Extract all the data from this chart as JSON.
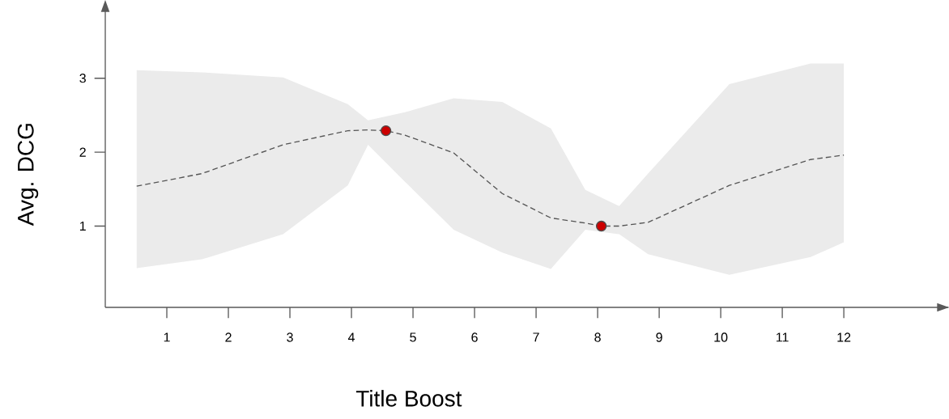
{
  "chart_data": {
    "type": "line",
    "xlabel": "Title Boost",
    "ylabel": "Avg. DCG",
    "xlim": [
      0,
      13.7
    ],
    "ylim": [
      -0.1,
      4.0
    ],
    "xticks": [
      1,
      2,
      3,
      4,
      5,
      6,
      7,
      8,
      9,
      10,
      11,
      12
    ],
    "yticks": [
      1,
      2,
      3
    ],
    "grid": false,
    "series": [
      {
        "color": "#555555",
        "line_style": "dashed",
        "marker": "none",
        "x": [
          0.51,
          1.57,
          2.89,
          3.94,
          4.27,
          4.56,
          4.87,
          5.66,
          6.45,
          7.24,
          7.8,
          8.06,
          8.35,
          8.82,
          10.14,
          11.46,
          12.0
        ],
        "values": [
          1.54,
          1.71,
          2.1,
          2.29,
          2.3,
          2.29,
          2.23,
          1.99,
          1.44,
          1.11,
          1.04,
          1.0,
          1.0,
          1.05,
          1.55,
          1.9,
          1.96
        ],
        "upper": [
          3.11,
          3.08,
          3.01,
          2.65,
          2.43,
          null,
          2.54,
          2.73,
          2.68,
          2.32,
          1.49,
          null,
          1.27,
          1.71,
          2.92,
          3.2,
          3.2
        ],
        "lower": [
          0.43,
          0.55,
          0.89,
          1.55,
          2.1,
          null,
          1.6,
          0.95,
          0.64,
          0.42,
          0.95,
          null,
          0.89,
          0.62,
          0.34,
          0.58,
          0.78
        ]
      },
      {
        "type": "scatter",
        "color": "#cc0000",
        "marker": "circle",
        "x": [
          4.56,
          8.06
        ],
        "values": [
          2.29,
          1.0
        ]
      }
    ]
  }
}
